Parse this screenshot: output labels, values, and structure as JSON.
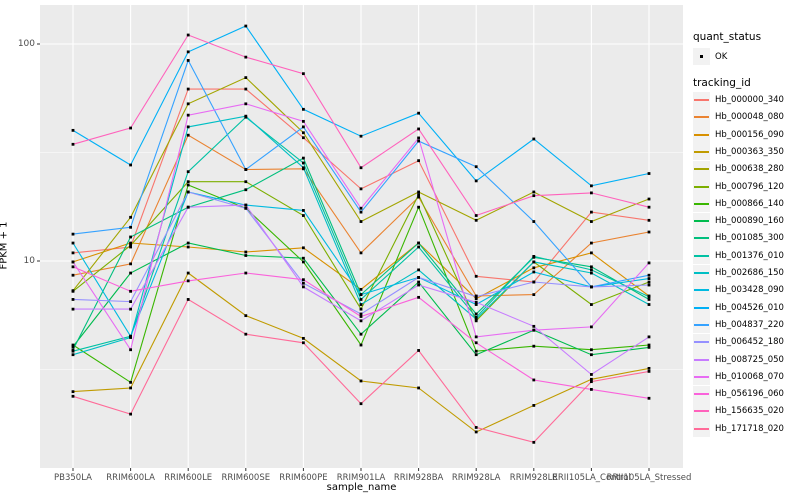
{
  "figure": {
    "panel_bg": "#EBEBEB",
    "grid_color": "#FFFFFF",
    "tick_text_color": "#4D4D4D",
    "point_color": "#000000",
    "legend_key_bg": "#F2F2F2"
  },
  "legend": {
    "quant_status_title": "quant_status",
    "quant_status_items": [
      "OK"
    ],
    "tracking_id_title": "tracking_id"
  },
  "chart_data": {
    "type": "line",
    "title": "",
    "xlabel": "sample_name",
    "ylabel": "FPKM + 1",
    "y_scale": "log10",
    "ylim": [
      1.2,
      160
    ],
    "y_major_ticks": [
      100,
      10
    ],
    "y_minor_ticks": [
      31.62,
      3.162
    ],
    "grid": "on",
    "legend_position": "right",
    "categories": [
      "PB350LA",
      "RRIM600LA",
      "RRIM600LE",
      "RRIM600SE",
      "RRIM600PE",
      "RRIM901LA",
      "RRIM928BA",
      "RRIM928LA",
      "RRIM928LE",
      "RRII105LA_Control",
      "RRII105LA_Stressed"
    ],
    "series": [
      {
        "name": "Hb_000000_340",
        "color": "#F8766D",
        "values": [
          10.9,
          11.6,
          62,
          62,
          37,
          21.5,
          29,
          8.5,
          8.0,
          16.8,
          15.4
        ]
      },
      {
        "name": "Hb_000048_080",
        "color": "#EA8331",
        "values": [
          8.6,
          9.7,
          38,
          26.4,
          26.6,
          10.9,
          19.7,
          6.9,
          7.0,
          12.1,
          13.6
        ]
      },
      {
        "name": "Hb_000156_090",
        "color": "#D89000",
        "values": [
          9.9,
          12.1,
          11.6,
          11.0,
          11.5,
          7.4,
          12.1,
          6.7,
          9.3,
          10.9,
          6.9
        ]
      },
      {
        "name": "Hb_000363_350",
        "color": "#C09B00",
        "values": [
          2.5,
          2.6,
          8.8,
          5.6,
          4.4,
          2.8,
          2.6,
          1.63,
          2.16,
          2.85,
          3.2
        ]
      },
      {
        "name": "Hb_000638_280",
        "color": "#A3A500",
        "values": [
          7.3,
          15.9,
          53,
          70,
          39,
          15.2,
          20.8,
          15.4,
          20.8,
          15.2,
          19.3
        ]
      },
      {
        "name": "Hb_000796_120",
        "color": "#7CAE00",
        "values": [
          7.25,
          11.8,
          23.2,
          23.2,
          16.2,
          6.0,
          20.2,
          5.3,
          9.9,
          6.3,
          8.0
        ]
      },
      {
        "name": "Hb_000866_140",
        "color": "#39B600",
        "values": [
          4.1,
          2.76,
          22.4,
          17.5,
          9.9,
          4.1,
          17.7,
          3.84,
          4.05,
          3.9,
          4.1
        ]
      },
      {
        "name": "Hb_000890_160",
        "color": "#00BB4E",
        "values": [
          4.03,
          8.8,
          12.1,
          10.6,
          10.3,
          4.6,
          8.0,
          3.7,
          4.8,
          3.7,
          4.0
        ]
      },
      {
        "name": "Hb_001085_300",
        "color": "#00BF7D",
        "values": [
          3.9,
          12.9,
          17.7,
          21.3,
          29.8,
          7.0,
          12.1,
          5.7,
          10.4,
          9.4,
          6.65
        ]
      },
      {
        "name": "Hb_001376_010",
        "color": "#00C1A3",
        "values": [
          3.84,
          4.5,
          25.8,
          46,
          28.3,
          6.65,
          11.6,
          5.5,
          10.5,
          9.1,
          6.85
        ]
      },
      {
        "name": "Hb_002686_150",
        "color": "#00BFC4",
        "values": [
          3.7,
          4.44,
          41.5,
          46.5,
          26.9,
          6.3,
          9.1,
          5.4,
          9.9,
          8.8,
          6.3
        ]
      },
      {
        "name": "Hb_003428_090",
        "color": "#00BAE0",
        "values": [
          12.1,
          4.5,
          20.8,
          18.1,
          17.1,
          7.0,
          8.4,
          6.3,
          8.9,
          7.6,
          8.3
        ]
      },
      {
        "name": "Hb_004526_010",
        "color": "#00B0F6",
        "values": [
          40,
          27.7,
          92,
          121,
          50,
          37.6,
          48,
          23.4,
          36.5,
          22.2,
          25.3
        ]
      },
      {
        "name": "Hb_004837_220",
        "color": "#35A2FF",
        "values": [
          13.3,
          14.3,
          84,
          26.4,
          41.5,
          16.8,
          35.7,
          27.2,
          15.2,
          7.6,
          8.6
        ]
      },
      {
        "name": "Hb_006452_180",
        "color": "#9590FF",
        "values": [
          6.65,
          6.5,
          20.8,
          17.5,
          7.9,
          5.7,
          8.4,
          6.85,
          8.0,
          7.6,
          7.75
        ]
      },
      {
        "name": "Hb_008725_050",
        "color": "#C77CFF",
        "values": [
          6.0,
          6.0,
          17.7,
          18.1,
          7.6,
          5.3,
          7.75,
          6.45,
          5.0,
          3.0,
          4.47
        ]
      },
      {
        "name": "Hb_010068_070",
        "color": "#E76BF3",
        "values": [
          9.9,
          3.9,
          47,
          53,
          44,
          17.5,
          36.9,
          4.47,
          4.8,
          4.97,
          9.8
        ]
      },
      {
        "name": "Hb_056196_060",
        "color": "#FA62DB",
        "values": [
          9.4,
          7.25,
          8.1,
          8.8,
          8.2,
          5.55,
          6.8,
          4.2,
          2.83,
          2.56,
          2.33
        ]
      },
      {
        "name": "Hb_156635_020",
        "color": "#FF62BC",
        "values": [
          34.5,
          41,
          110,
          87,
          73,
          26.9,
          40.6,
          16.2,
          20,
          20.6,
          17.7
        ]
      },
      {
        "name": "Hb_171718_020",
        "color": "#FF6A98",
        "values": [
          2.38,
          1.97,
          6.65,
          4.6,
          4.2,
          2.2,
          3.87,
          1.71,
          1.46,
          2.78,
          3.1
        ]
      }
    ]
  }
}
